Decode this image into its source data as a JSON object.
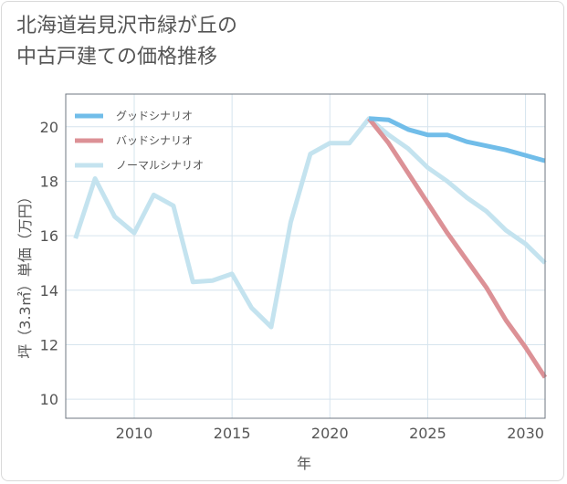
{
  "title_lines": [
    "北海道岩見沢市緑が丘の",
    "中古戸建ての価格推移"
  ],
  "chart_data": {
    "type": "line",
    "title": "北海道岩見沢市緑が丘の中古戸建ての価格推移",
    "xlabel": "年",
    "ylabel": "坪（3.3㎡）単価（万円）",
    "xlim": [
      2006.5,
      2031
    ],
    "ylim": [
      9.3,
      21.2
    ],
    "xticks": [
      2010,
      2015,
      2020,
      2025,
      2030
    ],
    "yticks": [
      10,
      12,
      14,
      16,
      18,
      20
    ],
    "grid": true,
    "legend_position": "top-left",
    "series": [
      {
        "name": "ノーマルシナリオ",
        "color": "#c4e3ef",
        "x": [
          2007,
          2008,
          2009,
          2010,
          2011,
          2012,
          2013,
          2014,
          2015,
          2016,
          2017,
          2018,
          2019,
          2020,
          2021,
          2022,
          2023,
          2024,
          2025,
          2026,
          2027,
          2028,
          2029,
          2030,
          2031
        ],
        "y": [
          15.9,
          18.1,
          16.7,
          16.1,
          17.5,
          17.1,
          14.3,
          14.35,
          14.6,
          13.35,
          12.65,
          16.5,
          19.0,
          19.4,
          19.4,
          20.3,
          19.7,
          19.2,
          18.5,
          18.0,
          17.4,
          16.9,
          16.2,
          15.7,
          15.0
        ]
      },
      {
        "name": "バッドシナリオ",
        "color": "#dc9196",
        "x": [
          2022,
          2023,
          2024,
          2025,
          2026,
          2027,
          2028,
          2029,
          2030,
          2031
        ],
        "y": [
          20.3,
          19.4,
          18.3,
          17.2,
          16.1,
          15.1,
          14.1,
          12.9,
          11.9,
          10.8
        ]
      },
      {
        "name": "グッドシナリオ",
        "color": "#71bde9",
        "x": [
          2022,
          2023,
          2024,
          2025,
          2026,
          2027,
          2028,
          2029,
          2030,
          2031
        ],
        "y": [
          20.3,
          20.25,
          19.9,
          19.7,
          19.7,
          19.45,
          19.3,
          19.15,
          18.95,
          18.75
        ]
      }
    ],
    "legend": [
      {
        "name": "グッドシナリオ",
        "color": "#71bde9"
      },
      {
        "name": "バッドシナリオ",
        "color": "#dc9196"
      },
      {
        "name": "ノーマルシナリオ",
        "color": "#c4e3ef"
      }
    ]
  }
}
